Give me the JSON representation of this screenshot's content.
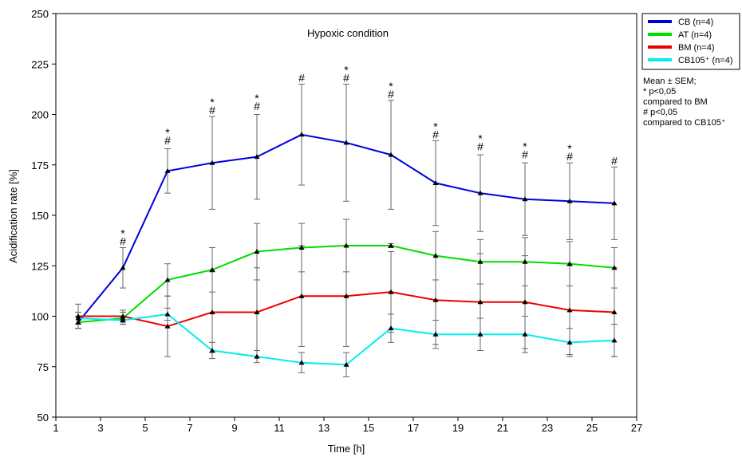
{
  "chart_data": {
    "type": "line",
    "title": "Hypoxic condition",
    "xlabel": "Time [h]",
    "ylabel": "Acidification rate [%]",
    "xlim": [
      1,
      27
    ],
    "ylim": [
      50,
      250
    ],
    "xticks": [
      1,
      3,
      5,
      7,
      9,
      11,
      13,
      15,
      17,
      19,
      21,
      23,
      25,
      27
    ],
    "yticks": [
      50,
      75,
      100,
      125,
      150,
      175,
      200,
      225,
      250
    ],
    "grid": false,
    "legend_position": "top-right",
    "x": [
      2,
      4,
      6,
      8,
      10,
      12,
      14,
      16,
      18,
      20,
      22,
      24,
      26
    ],
    "series": [
      {
        "name": "CB (n=4)",
        "color": "#0000dd",
        "values": [
          97,
          124,
          172,
          176,
          179,
          190,
          186,
          180,
          166,
          161,
          158,
          157,
          156
        ],
        "err": [
          3,
          10,
          11,
          23,
          21,
          25,
          29,
          27,
          21,
          19,
          18,
          19,
          18
        ]
      },
      {
        "name": "AT (n=4)",
        "color": "#00dd00",
        "values": [
          97,
          99,
          118,
          123,
          132,
          134,
          135,
          135,
          130,
          127,
          127,
          126,
          124
        ],
        "err": [
          3,
          3,
          8,
          11,
          14,
          12,
          13,
          1,
          12,
          11,
          12,
          11,
          10
        ]
      },
      {
        "name": "BM (n=4)",
        "color": "#ee0000",
        "values": [
          100,
          100,
          95,
          102,
          102,
          110,
          110,
          112,
          108,
          107,
          107,
          103,
          102
        ],
        "err": [
          6,
          3,
          15,
          20,
          22,
          25,
          25,
          20,
          22,
          24,
          23,
          22,
          22
        ]
      },
      {
        "name": "CB105⁺ (n=4)",
        "color": "#00eeee",
        "values": [
          99,
          98,
          101,
          83,
          80,
          77,
          76,
          94,
          91,
          91,
          91,
          87,
          88
        ],
        "err": [
          3,
          2,
          3,
          4,
          3,
          5,
          6,
          7,
          7,
          8,
          9,
          7,
          8
        ]
      }
    ],
    "annotations": [
      {
        "x": 4,
        "y": 134,
        "symbols": "*#"
      },
      {
        "x": 6,
        "y": 184,
        "symbols": "*#"
      },
      {
        "x": 8,
        "y": 199,
        "symbols": "*#"
      },
      {
        "x": 10,
        "y": 201,
        "symbols": "*#"
      },
      {
        "x": 12,
        "y": 215,
        "symbols": "#"
      },
      {
        "x": 14,
        "y": 215,
        "symbols": "*#"
      },
      {
        "x": 16,
        "y": 207,
        "symbols": "*#"
      },
      {
        "x": 18,
        "y": 187,
        "symbols": "*#"
      },
      {
        "x": 20,
        "y": 181,
        "symbols": "*#"
      },
      {
        "x": 22,
        "y": 177,
        "symbols": "*#"
      },
      {
        "x": 24,
        "y": 176,
        "symbols": "*#"
      },
      {
        "x": 26,
        "y": 174,
        "symbols": "#"
      }
    ]
  },
  "notes": {
    "line1": "Mean ± SEM;",
    "line2": "* p<0,05",
    "line3": "compared to BM",
    "line4": "# p<0,05",
    "line5": "compared to CB105⁺"
  }
}
